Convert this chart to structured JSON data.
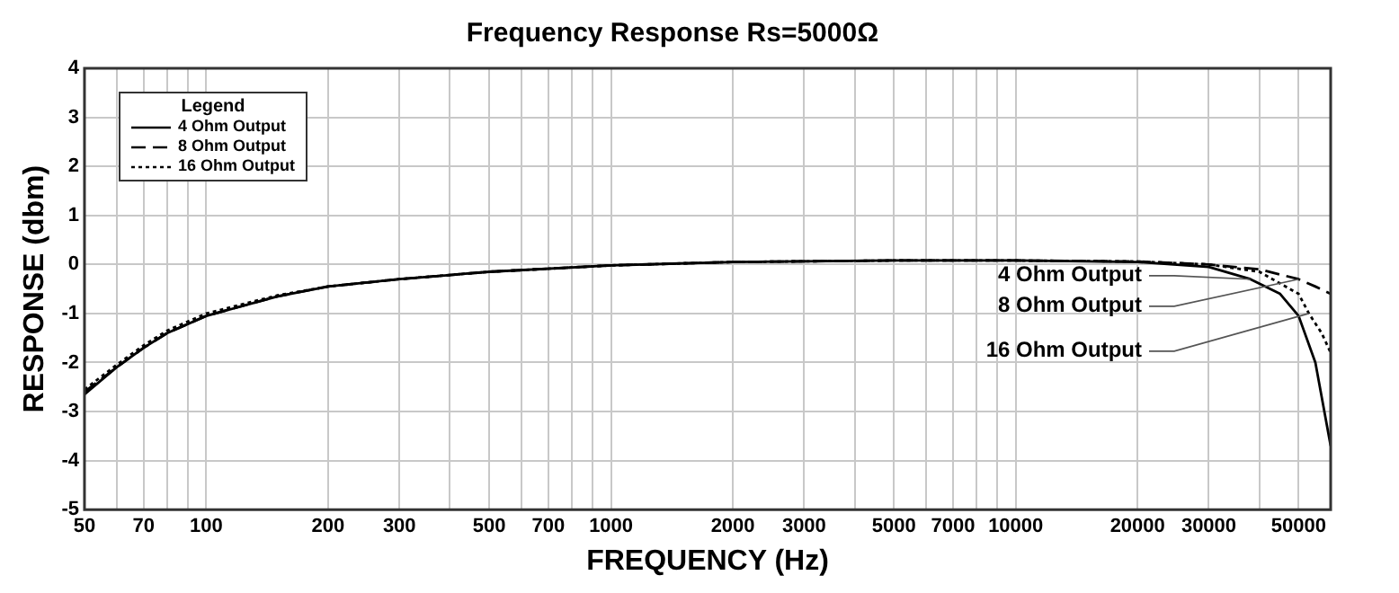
{
  "chart_data": {
    "type": "line",
    "title": "Frequency Response Rs=5000Ω",
    "xlabel": "FREQUENCY (Hz)",
    "ylabel": "RESPONSE (dbm)",
    "log": "x",
    "xlim": [
      50,
      60000
    ],
    "ylim": [
      -5,
      4
    ],
    "xticks": [
      50,
      {
        "value": 60,
        "label": null
      },
      70,
      {
        "value": 80,
        "label": null
      },
      {
        "value": 90,
        "label": null
      },
      100,
      200,
      300,
      {
        "value": 400,
        "label": null
      },
      500,
      {
        "value": 600,
        "label": null
      },
      700,
      {
        "value": 800,
        "label": null
      },
      {
        "value": 900,
        "label": null
      },
      1000,
      2000,
      3000,
      {
        "value": 4000,
        "label": null
      },
      5000,
      {
        "value": 6000,
        "label": null
      },
      7000,
      {
        "value": 8000,
        "label": null
      },
      {
        "value": 9000,
        "label": null
      },
      10000,
      20000,
      30000,
      {
        "value": 40000,
        "label": null
      },
      50000,
      {
        "value": 60000,
        "label": null
      }
    ],
    "yticks": [
      -5,
      -4,
      -3,
      -2,
      -1,
      0,
      1,
      2,
      3,
      4
    ],
    "grid": true,
    "legend": "top left",
    "legend_title": "Legend",
    "marker": "none",
    "series": [
      {
        "name": "4 Ohm Output",
        "color": "#000000",
        "line_style": "solid",
        "x": [
          50,
          60,
          70,
          80,
          100,
          150,
          200,
          300,
          500,
          1000,
          2000,
          5000,
          10000,
          20000,
          30000,
          38000,
          45000,
          50000,
          55000,
          60000
        ],
        "values": [
          -2.65,
          -2.1,
          -1.7,
          -1.4,
          -1.05,
          -0.65,
          -0.45,
          -0.3,
          -0.15,
          -0.02,
          0.05,
          0.08,
          0.08,
          0.05,
          -0.05,
          -0.3,
          -0.6,
          -1.05,
          -2.0,
          -3.7
        ]
      },
      {
        "name": "8 Ohm Output",
        "color": "#000000",
        "line_style": "dashed",
        "x": [
          50,
          60,
          70,
          80,
          100,
          150,
          200,
          300,
          500,
          1000,
          2000,
          5000,
          10000,
          20000,
          30000,
          40000,
          50000,
          55000,
          60000
        ],
        "values": [
          -2.6,
          -2.1,
          -1.7,
          -1.4,
          -1.05,
          -0.65,
          -0.45,
          -0.3,
          -0.15,
          -0.02,
          0.05,
          0.08,
          0.08,
          0.06,
          0.0,
          -0.1,
          -0.3,
          -0.45,
          -0.6
        ]
      },
      {
        "name": "16 Ohm Output",
        "color": "#000000",
        "line_style": "dotted",
        "x": [
          50,
          60,
          70,
          80,
          100,
          150,
          200,
          300,
          500,
          1000,
          2000,
          5000,
          10000,
          20000,
          30000,
          40000,
          50000,
          53000,
          57000,
          60000
        ],
        "values": [
          -2.55,
          -2.05,
          -1.65,
          -1.35,
          -1.0,
          -0.63,
          -0.45,
          -0.3,
          -0.15,
          -0.02,
          0.05,
          0.08,
          0.08,
          0.06,
          0.0,
          -0.15,
          -0.6,
          -1.0,
          -1.4,
          -1.8
        ]
      }
    ],
    "annotations": [
      {
        "text": "4 Ohm Output",
        "x": 38000,
        "y": -0.3
      },
      {
        "text": "8 Ohm Output",
        "x": 50000,
        "y": -0.3
      },
      {
        "text": "16 Ohm Output",
        "x": 53000,
        "y": -1.0
      }
    ]
  }
}
